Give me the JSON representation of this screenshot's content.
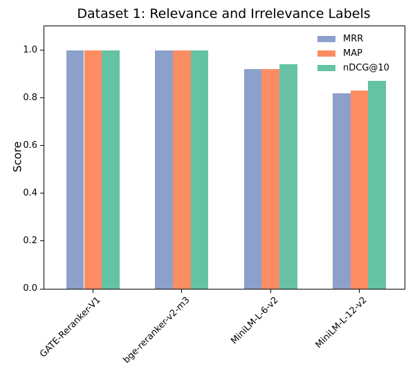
{
  "figure": {
    "title": "Dataset 1: Relevance and Irrelevance Labels",
    "ylabel": "Score"
  },
  "chart_data": {
    "type": "bar",
    "title": "Dataset 1: Relevance and Irrelevance Labels",
    "xlabel": "",
    "ylabel": "Score",
    "categories": [
      "GATE-Reranker-V1",
      "bge-reranker-v2-m3",
      "MiniLM-L-6-v2",
      "MiniLM-L-12-v2"
    ],
    "series": [
      {
        "name": "MRR",
        "color": "#8da0cb",
        "values": [
          1.0,
          1.0,
          0.92,
          0.82
        ]
      },
      {
        "name": "MAP",
        "color": "#fc8d62",
        "values": [
          1.0,
          1.0,
          0.92,
          0.83
        ]
      },
      {
        "name": "nDCG@10",
        "color": "#66c2a5",
        "values": [
          1.0,
          1.0,
          0.94,
          0.87
        ]
      }
    ],
    "ylim": [
      0,
      1.1
    ],
    "yticks": [
      0.0,
      0.2,
      0.4,
      0.6,
      0.8,
      1.0
    ],
    "ytick_labels": [
      "0.0",
      "0.2",
      "0.4",
      "0.6",
      "0.8",
      "1.0"
    ],
    "grid": false,
    "legend": {
      "position": "upper right",
      "entries": [
        "MRR",
        "MAP",
        "nDCG@10"
      ]
    }
  }
}
